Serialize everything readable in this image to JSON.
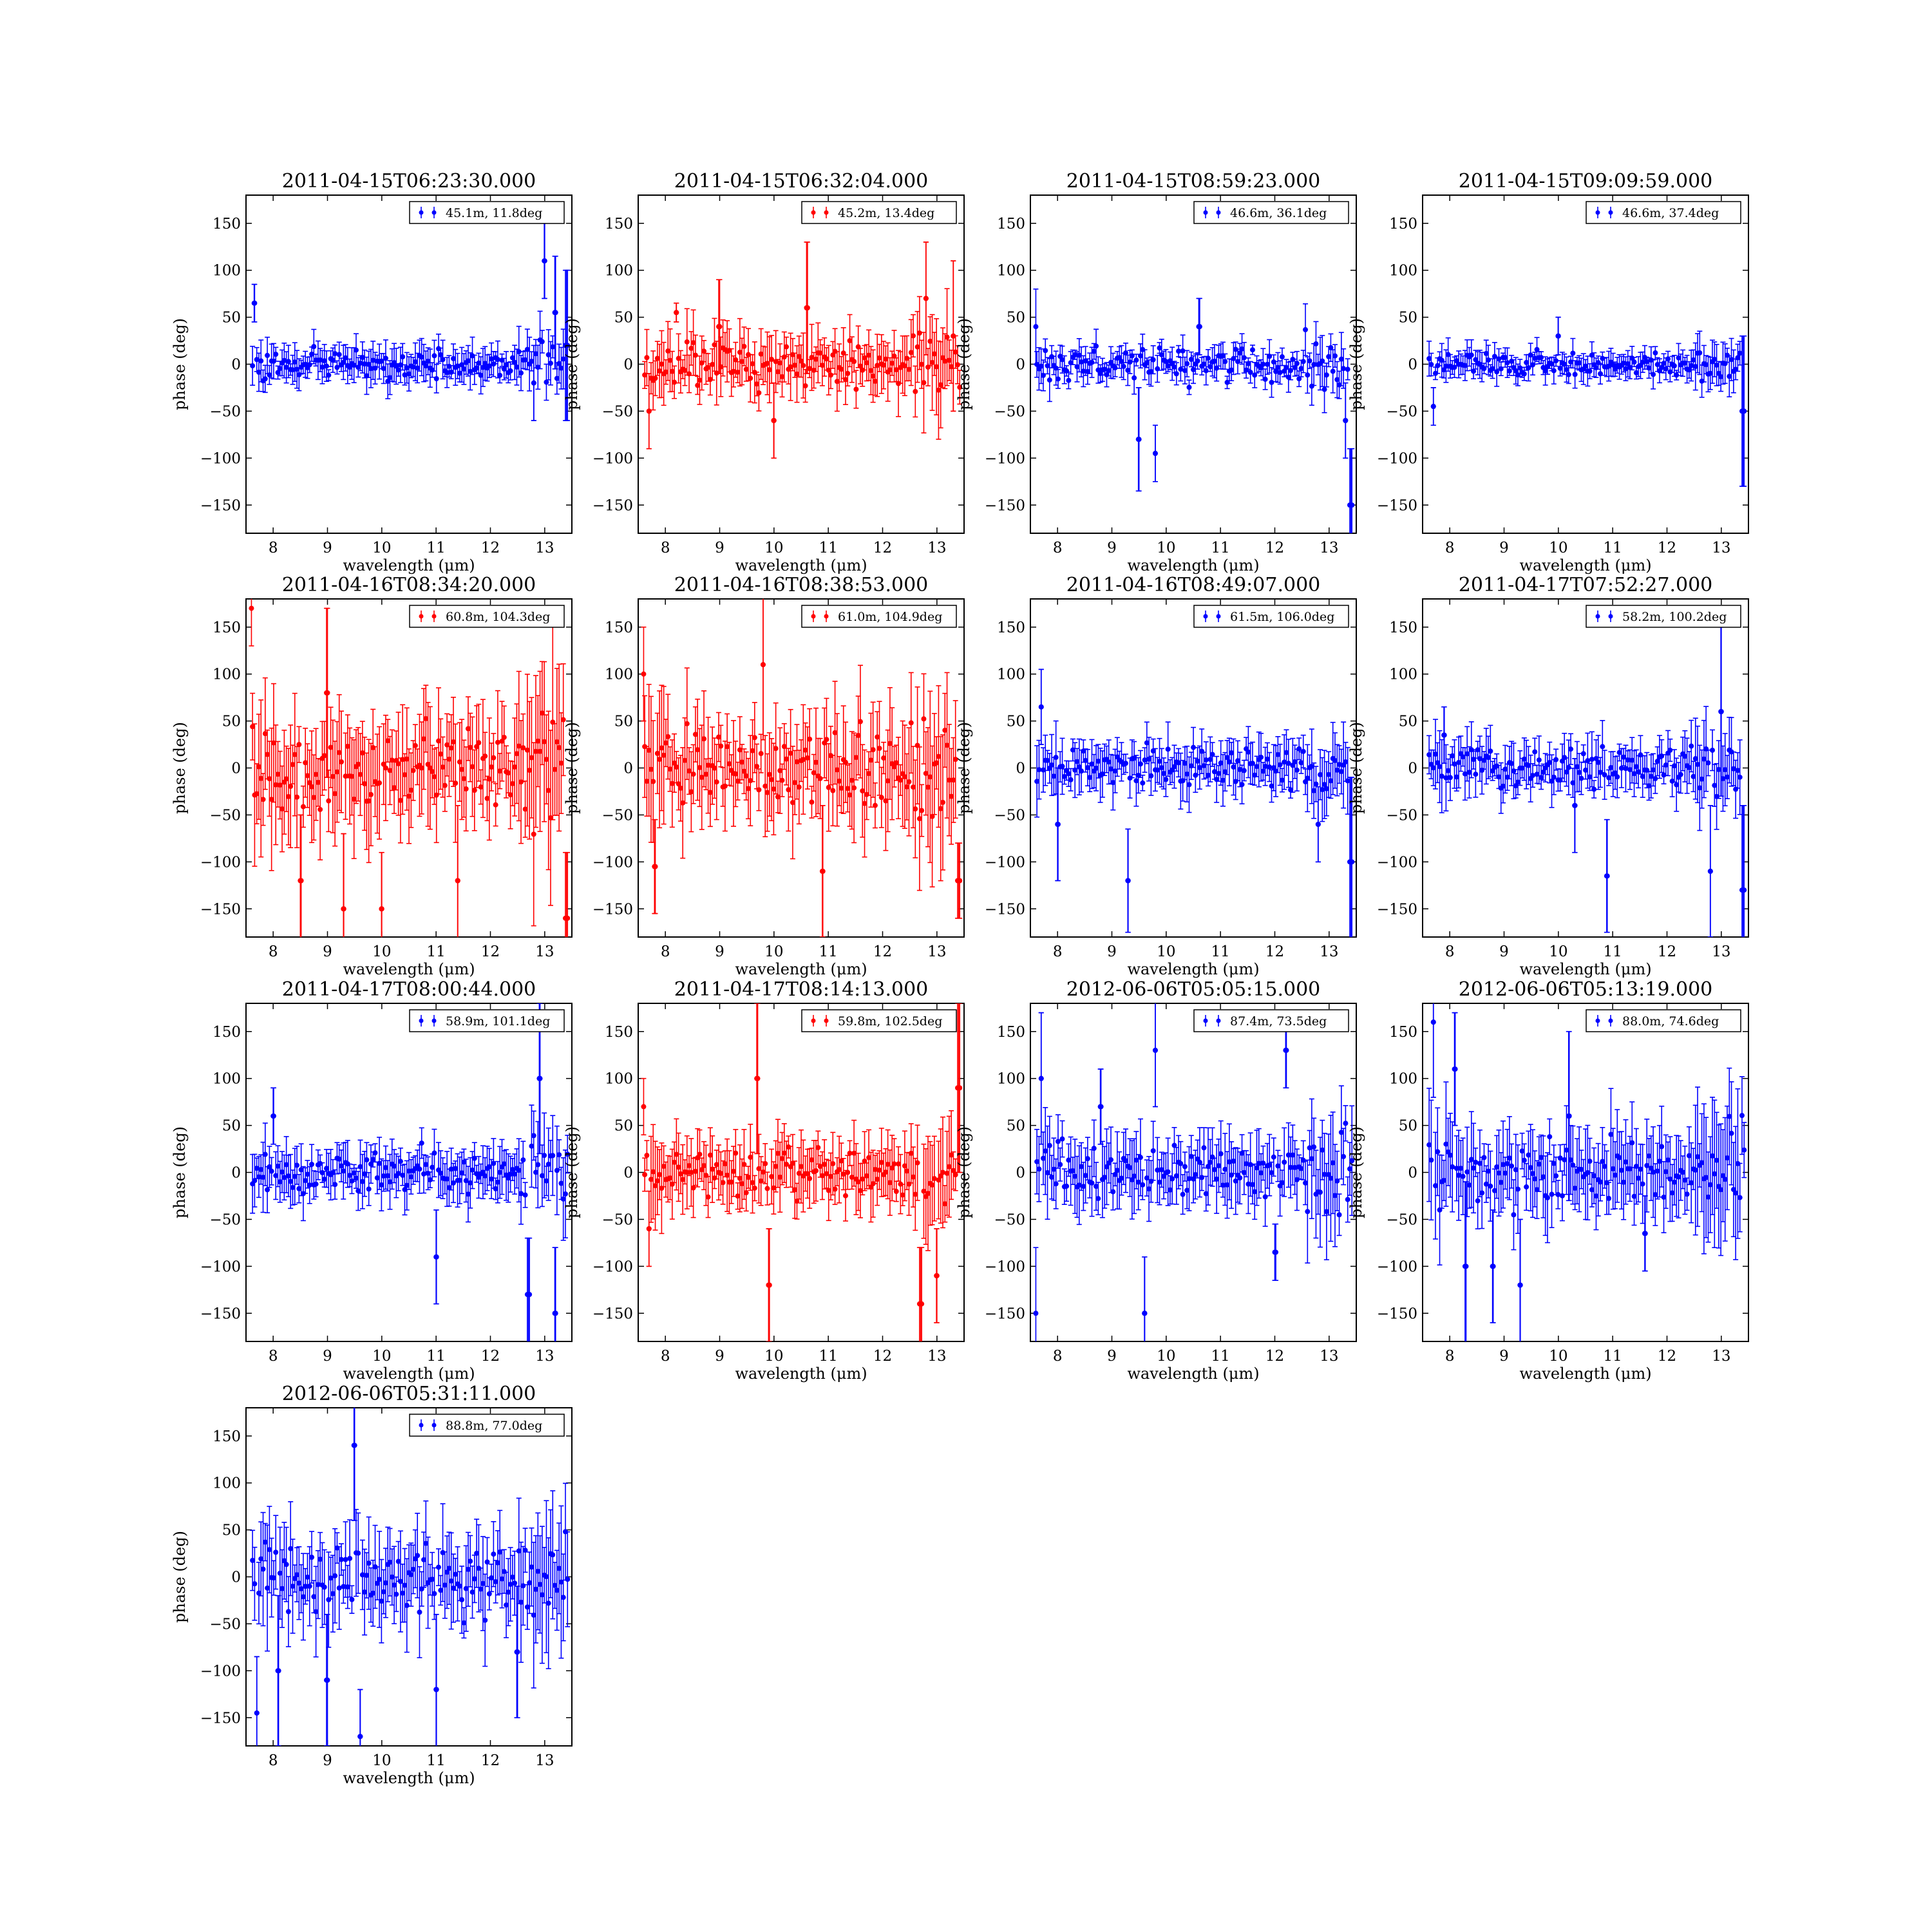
{
  "figure": {
    "xlabel": "wavelength (μm)",
    "ylabel": "phase (deg)"
  },
  "colors": {
    "blue": "#0000ff",
    "red": "#ff0000"
  },
  "chart_data": [
    {
      "type": "scatter",
      "title": "2011-04-15T06:23:30.000",
      "legend": "45.1m, 11.8deg",
      "color": "blue",
      "xlabel": "wavelength (μm)",
      "ylabel": "phase (deg)",
      "xlim": [
        7.5,
        13.5
      ],
      "ylim": [
        -180,
        180
      ],
      "xticks": [
        8,
        9,
        10,
        11,
        12,
        13
      ],
      "yticks": [
        -150,
        -100,
        -50,
        0,
        50,
        100,
        150
      ],
      "noise": 0.7,
      "err": 0.7,
      "highlights": [
        [
          7.65,
          65,
          20
        ],
        [
          12.8,
          -20,
          40
        ],
        [
          13.0,
          110,
          40
        ],
        [
          13.2,
          55,
          60
        ],
        [
          13.4,
          20,
          80
        ]
      ]
    },
    {
      "type": "scatter",
      "title": "2011-04-15T06:32:04.000",
      "legend": "45.2m, 13.4deg",
      "color": "red",
      "xlabel": "wavelength (μm)",
      "ylabel": "phase (deg)",
      "xlim": [
        7.5,
        13.5
      ],
      "ylim": [
        -180,
        180
      ],
      "xticks": [
        8,
        9,
        10,
        11,
        12,
        13
      ],
      "yticks": [
        -150,
        -100,
        -50,
        0,
        50,
        100,
        150
      ],
      "noise": 1.1,
      "err": 1.2,
      "highlights": [
        [
          7.7,
          -50,
          40
        ],
        [
          8.2,
          55,
          10
        ],
        [
          9.0,
          40,
          50
        ],
        [
          10.0,
          -60,
          40
        ],
        [
          10.6,
          60,
          70
        ],
        [
          12.8,
          70,
          60
        ],
        [
          13.3,
          30,
          80
        ]
      ]
    },
    {
      "type": "scatter",
      "title": "2011-04-15T08:59:23.000",
      "legend": "46.6m, 36.1deg",
      "color": "blue",
      "xlabel": "wavelength (μm)",
      "ylabel": "phase (deg)",
      "xlim": [
        7.5,
        13.5
      ],
      "ylim": [
        -180,
        180
      ],
      "xticks": [
        8,
        9,
        10,
        11,
        12,
        13
      ],
      "yticks": [
        -150,
        -100,
        -50,
        0,
        50,
        100,
        150
      ],
      "noise": 0.8,
      "err": 0.6,
      "highlights": [
        [
          7.6,
          40,
          40
        ],
        [
          9.5,
          -80,
          55
        ],
        [
          9.8,
          -95,
          30
        ],
        [
          10.6,
          40,
          30
        ],
        [
          13.3,
          -60,
          40
        ],
        [
          13.4,
          -150,
          60
        ]
      ]
    },
    {
      "type": "scatter",
      "title": "2011-04-15T09:09:59.000",
      "legend": "46.6m, 37.4deg",
      "color": "blue",
      "xlabel": "wavelength (μm)",
      "ylabel": "phase (deg)",
      "xlim": [
        7.5,
        13.5
      ],
      "ylim": [
        -180,
        180
      ],
      "xticks": [
        8,
        9,
        10,
        11,
        12,
        13
      ],
      "yticks": [
        -150,
        -100,
        -50,
        0,
        50,
        100,
        150
      ],
      "noise": 0.6,
      "err": 0.55,
      "highlights": [
        [
          7.7,
          -45,
          20
        ],
        [
          10.0,
          30,
          20
        ],
        [
          13.4,
          -50,
          80
        ]
      ]
    },
    {
      "type": "scatter",
      "title": "2011-04-16T08:34:20.000",
      "legend": "60.8m, 104.3deg",
      "color": "red",
      "xlabel": "wavelength (μm)",
      "ylabel": "phase (deg)",
      "xlim": [
        7.5,
        13.5
      ],
      "ylim": [
        -180,
        180
      ],
      "xticks": [
        8,
        9,
        10,
        11,
        12,
        13
      ],
      "yticks": [
        -150,
        -100,
        -50,
        0,
        50,
        100,
        150
      ],
      "noise": 2.2,
      "err": 2.2,
      "highlights": [
        [
          7.6,
          170,
          40
        ],
        [
          8.5,
          -120,
          70
        ],
        [
          9.0,
          80,
          90
        ],
        [
          9.3,
          -150,
          80
        ],
        [
          10.0,
          -150,
          60
        ],
        [
          11.4,
          -120,
          80
        ],
        [
          13.4,
          -160,
          70
        ]
      ]
    },
    {
      "type": "scatter",
      "title": "2011-04-16T08:38:53.000",
      "legend": "61.0m, 104.9deg",
      "color": "red",
      "xlabel": "wavelength (μm)",
      "ylabel": "phase (deg)",
      "xlim": [
        7.5,
        13.5
      ],
      "ylim": [
        -180,
        180
      ],
      "xticks": [
        8,
        9,
        10,
        11,
        12,
        13
      ],
      "yticks": [
        -150,
        -100,
        -50,
        0,
        50,
        100,
        150
      ],
      "noise": 1.9,
      "err": 2.0,
      "highlights": [
        [
          7.6,
          100,
          50
        ],
        [
          7.8,
          -105,
          50
        ],
        [
          9.8,
          110,
          80
        ],
        [
          10.9,
          -110,
          70
        ],
        [
          13.4,
          -120,
          40
        ]
      ]
    },
    {
      "type": "scatter",
      "title": "2011-04-16T08:49:07.000",
      "legend": "61.5m, 106.0deg",
      "color": "blue",
      "xlabel": "wavelength (μm)",
      "ylabel": "phase (deg)",
      "xlim": [
        7.5,
        13.5
      ],
      "ylim": [
        -180,
        180
      ],
      "xticks": [
        8,
        9,
        10,
        11,
        12,
        13
      ],
      "yticks": [
        -150,
        -100,
        -50,
        0,
        50,
        100,
        150
      ],
      "noise": 1.0,
      "err": 1.0,
      "highlights": [
        [
          7.7,
          65,
          40
        ],
        [
          8.0,
          -60,
          60
        ],
        [
          9.3,
          -120,
          55
        ],
        [
          12.8,
          -60,
          40
        ],
        [
          13.4,
          -100,
          90
        ]
      ]
    },
    {
      "type": "scatter",
      "title": "2011-04-17T07:52:27.000",
      "legend": "58.2m, 100.2deg",
      "color": "blue",
      "xlabel": "wavelength (μm)",
      "ylabel": "phase (deg)",
      "xlim": [
        7.5,
        13.5
      ],
      "ylim": [
        -180,
        180
      ],
      "xticks": [
        8,
        9,
        10,
        11,
        12,
        13
      ],
      "yticks": [
        -150,
        -100,
        -50,
        0,
        50,
        100,
        150
      ],
      "noise": 1.0,
      "err": 1.0,
      "highlights": [
        [
          7.9,
          35,
          30
        ],
        [
          10.3,
          -40,
          50
        ],
        [
          10.9,
          -115,
          60
        ],
        [
          12.8,
          -110,
          70
        ],
        [
          13.0,
          60,
          90
        ],
        [
          13.4,
          -130,
          90
        ]
      ]
    },
    {
      "type": "scatter",
      "title": "2011-04-17T08:00:44.000",
      "legend": "58.9m, 101.1deg",
      "color": "blue",
      "xlabel": "wavelength (μm)",
      "ylabel": "phase (deg)",
      "xlim": [
        7.5,
        13.5
      ],
      "ylim": [
        -180,
        180
      ],
      "xticks": [
        8,
        9,
        10,
        11,
        12,
        13
      ],
      "yticks": [
        -150,
        -100,
        -50,
        0,
        50,
        100,
        150
      ],
      "noise": 1.0,
      "err": 1.0,
      "highlights": [
        [
          8.0,
          60,
          30
        ],
        [
          11.0,
          -90,
          50
        ],
        [
          12.7,
          -130,
          60
        ],
        [
          12.9,
          100,
          80
        ],
        [
          13.2,
          -150,
          70
        ]
      ]
    },
    {
      "type": "scatter",
      "title": "2011-04-17T08:14:13.000",
      "legend": "59.8m, 102.5deg",
      "color": "red",
      "xlabel": "wavelength (μm)",
      "ylabel": "phase (deg)",
      "xlim": [
        7.5,
        13.5
      ],
      "ylim": [
        -180,
        180
      ],
      "xticks": [
        8,
        9,
        10,
        11,
        12,
        13
      ],
      "yticks": [
        -150,
        -100,
        -50,
        0,
        50,
        100,
        150
      ],
      "noise": 1.2,
      "err": 1.3,
      "highlights": [
        [
          7.6,
          70,
          30
        ],
        [
          7.7,
          -60,
          40
        ],
        [
          9.7,
          100,
          80
        ],
        [
          9.9,
          -120,
          60
        ],
        [
          12.7,
          -140,
          60
        ],
        [
          13.0,
          -110,
          50
        ],
        [
          13.4,
          90,
          90
        ]
      ]
    },
    {
      "type": "scatter",
      "title": "2012-06-06T05:05:15.000",
      "legend": "87.4m, 73.5deg",
      "color": "blue",
      "xlabel": "wavelength (μm)",
      "ylabel": "phase (deg)",
      "xlim": [
        7.5,
        13.5
      ],
      "ylim": [
        -180,
        180
      ],
      "xticks": [
        8,
        9,
        10,
        11,
        12,
        13
      ],
      "yticks": [
        -150,
        -100,
        -50,
        0,
        50,
        100,
        150
      ],
      "noise": 1.4,
      "err": 1.4,
      "highlights": [
        [
          7.7,
          100,
          70
        ],
        [
          7.6,
          -150,
          70
        ],
        [
          8.8,
          70,
          40
        ],
        [
          9.6,
          -150,
          60
        ],
        [
          9.8,
          130,
          60
        ],
        [
          12.2,
          130,
          40
        ],
        [
          12.0,
          -85,
          30
        ]
      ]
    },
    {
      "type": "scatter",
      "title": "2012-06-06T05:13:19.000",
      "legend": "88.0m, 74.6deg",
      "color": "blue",
      "xlabel": "wavelength (μm)",
      "ylabel": "phase (deg)",
      "xlim": [
        7.5,
        13.5
      ],
      "ylim": [
        -180,
        180
      ],
      "xticks": [
        8,
        9,
        10,
        11,
        12,
        13
      ],
      "yticks": [
        -150,
        -100,
        -50,
        0,
        50,
        100,
        150
      ],
      "noise": 1.6,
      "err": 1.7,
      "highlights": [
        [
          7.7,
          160,
          80
        ],
        [
          8.1,
          110,
          60
        ],
        [
          8.3,
          -100,
          90
        ],
        [
          8.8,
          -100,
          60
        ],
        [
          9.3,
          -120,
          70
        ],
        [
          10.2,
          60,
          90
        ],
        [
          11.6,
          -65,
          40
        ]
      ]
    },
    {
      "type": "scatter",
      "title": "2012-06-06T05:31:11.000",
      "legend": "88.8m, 77.0deg",
      "color": "blue",
      "xlabel": "wavelength (μm)",
      "ylabel": "phase (deg)",
      "xlim": [
        7.5,
        13.5
      ],
      "ylim": [
        -180,
        180
      ],
      "xticks": [
        8,
        9,
        10,
        11,
        12,
        13
      ],
      "yticks": [
        -150,
        -100,
        -50,
        0,
        50,
        100,
        150
      ],
      "noise": 1.7,
      "err": 1.8,
      "highlights": [
        [
          7.7,
          -145,
          60
        ],
        [
          8.1,
          -100,
          80
        ],
        [
          9.0,
          -110,
          70
        ],
        [
          9.5,
          140,
          80
        ],
        [
          9.6,
          -170,
          50
        ],
        [
          11.0,
          -120,
          80
        ],
        [
          12.5,
          -80,
          70
        ]
      ]
    }
  ]
}
